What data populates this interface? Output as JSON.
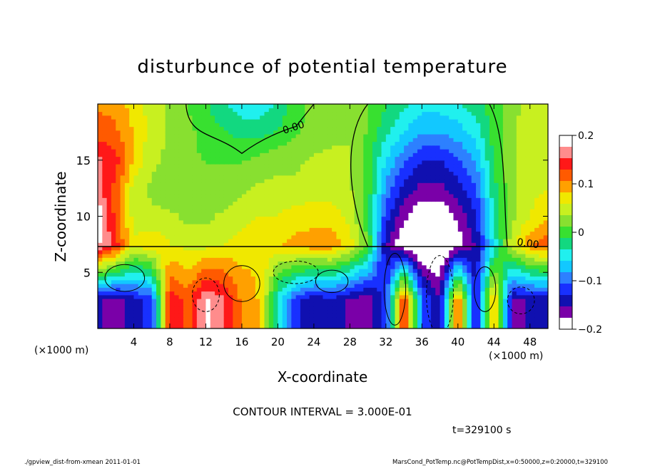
{
  "chart_data": {
    "type": "heatmap",
    "title": "disturbunce of potential temperature",
    "xlabel": "X-coordinate",
    "ylabel": "Z-coordinate",
    "x_unit_left": "(×1000 m)",
    "x_unit_right": "(×1000 m)",
    "xlim": [
      0,
      50
    ],
    "ylim": [
      0,
      20
    ],
    "x_ticks": [
      4,
      8,
      12,
      16,
      20,
      24,
      28,
      32,
      36,
      40,
      44,
      48
    ],
    "y_ticks": [
      5,
      10,
      15
    ],
    "colorbar": {
      "ticks": [
        {
          "value": 0.2,
          "label": "0.2"
        },
        {
          "value": 0.1,
          "label": "0.1"
        },
        {
          "value": 0,
          "label": "0"
        },
        {
          "value": -0.1,
          "label": "−0.1"
        },
        {
          "value": -0.2,
          "label": "−0.2"
        }
      ],
      "range": [
        -0.2,
        0.2
      ],
      "colors": [
        "#ffffff",
        "#7a00a8",
        "#1010b0",
        "#1830ff",
        "#2d80ff",
        "#12c8ff",
        "#20f0ee",
        "#12d880",
        "#38e030",
        "#88e030",
        "#c8f020",
        "#f0e800",
        "#ffa000",
        "#ff5a00",
        "#ff1818",
        "#ff8c8c",
        "#ffffff"
      ]
    },
    "contour_labels": [
      "0.00",
      "0.00"
    ],
    "contour_interval_text": "CONTOUR INTERVAL = 3.000E-01",
    "time_text": "t=329100 s",
    "footer_left": "./gpview_dist-from-xmean  2011-01-01",
    "footer_right": "MarsCond_PotTemp.nc@PotTempDist,x=0:50000,z=0:20000,t=329100",
    "field_approx": {
      "x": [
        0,
        2,
        4,
        6,
        8,
        10,
        12,
        14,
        16,
        18,
        20,
        22,
        24,
        26,
        28,
        30,
        32,
        34,
        36,
        38,
        40,
        42,
        44,
        46,
        48,
        50
      ],
      "z": [
        2.5,
        7.5,
        10,
        12.5,
        15,
        17.5,
        20
      ],
      "values": [
        [
          -0.15,
          -0.17,
          -0.14,
          -0.12,
          0.15,
          0.12,
          0.18,
          0.16,
          0.1,
          0.08,
          -0.05,
          -0.12,
          -0.15,
          -0.14,
          -0.16,
          -0.17,
          -0.12,
          0.15,
          -0.1,
          -0.15,
          0.12,
          -0.14,
          0.1,
          -0.16,
          -0.15,
          -0.15
        ],
        [
          0.18,
          0.14,
          0.06,
          0.08,
          0.06,
          0.05,
          0.05,
          0.06,
          0.07,
          0.08,
          0.08,
          0.09,
          0.1,
          0.1,
          0.07,
          0.01,
          -0.15,
          -0.2,
          -0.22,
          -0.22,
          -0.19,
          -0.15,
          -0.05,
          0.05,
          0.1,
          0.12
        ],
        [
          0.2,
          0.12,
          0.05,
          0.04,
          0.04,
          0.03,
          0.03,
          0.04,
          0.05,
          0.06,
          0.06,
          0.07,
          0.07,
          0.07,
          0.05,
          0.0,
          -0.12,
          -0.17,
          -0.2,
          -0.2,
          -0.17,
          -0.13,
          -0.03,
          0.03,
          0.06,
          0.08
        ],
        [
          0.16,
          0.12,
          0.05,
          0.03,
          0.02,
          0.03,
          0.03,
          0.02,
          0.03,
          0.04,
          0.04,
          0.04,
          0.05,
          0.05,
          0.04,
          0.0,
          -0.09,
          -0.14,
          -0.16,
          -0.16,
          -0.14,
          -0.11,
          -0.02,
          0.03,
          0.05,
          0.06
        ],
        [
          0.16,
          0.14,
          0.08,
          0.04,
          0.03,
          0.02,
          0.01,
          0.01,
          0.01,
          0.02,
          0.03,
          0.03,
          0.04,
          0.04,
          0.04,
          0.0,
          -0.06,
          -0.1,
          -0.13,
          -0.13,
          -0.11,
          -0.08,
          -0.01,
          0.03,
          0.05,
          0.06
        ],
        [
          0.12,
          0.11,
          0.08,
          0.05,
          0.03,
          0.02,
          0.0,
          -0.01,
          -0.02,
          -0.02,
          -0.01,
          0.01,
          0.02,
          0.03,
          0.03,
          0.01,
          -0.03,
          -0.06,
          -0.08,
          -0.08,
          -0.07,
          -0.05,
          0.0,
          0.03,
          0.05,
          0.06
        ],
        [
          0.1,
          0.1,
          0.07,
          0.05,
          0.03,
          0.01,
          -0.01,
          -0.03,
          -0.05,
          -0.05,
          -0.03,
          0.0,
          0.02,
          0.03,
          0.03,
          0.01,
          -0.01,
          -0.03,
          -0.05,
          -0.05,
          -0.04,
          -0.02,
          0.0,
          0.03,
          0.04,
          0.05
        ]
      ]
    }
  }
}
